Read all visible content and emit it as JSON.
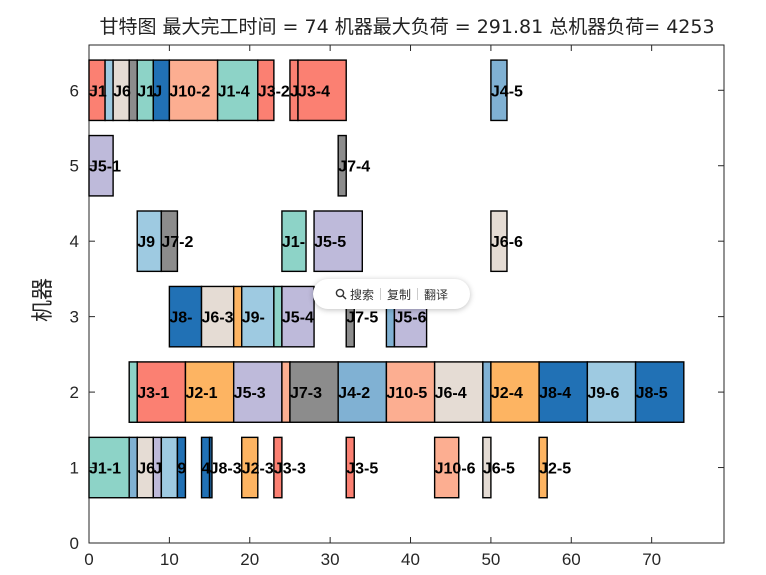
{
  "chart_data": {
    "type": "gantt",
    "title": "甘特图 最大完工时间 = 74 机器最大负荷 = 291.81 总机器负荷= 4253",
    "xlabel": "",
    "ylabel": "机器",
    "xlim": [
      0,
      79
    ],
    "ylim": [
      0,
      6.6
    ],
    "xticks": [
      "0",
      "10",
      "20",
      "30",
      "40",
      "50",
      "60",
      "70"
    ],
    "yticks": [
      "0",
      "1",
      "2",
      "3",
      "4",
      "5",
      "6"
    ],
    "grid": false,
    "colors": {
      "J1": "#8DD3C7",
      "J2": "#FDB462",
      "J3": "#FB8072",
      "J4": "#80B1D3",
      "J5": "#BEBADA",
      "J6": "#E5DCD4",
      "J7": "#8C8C8C",
      "J8": "#2171B5",
      "J9": "#9ECAE1",
      "J10": "#FCAE91"
    },
    "tasks": [
      {
        "machine": 6,
        "label": "J1",
        "start": 0,
        "end": 2,
        "job": "J3"
      },
      {
        "machine": 6,
        "label": "",
        "start": 2,
        "end": 3,
        "job": "J9"
      },
      {
        "machine": 6,
        "label": "J6",
        "start": 3,
        "end": 5,
        "job": "J6"
      },
      {
        "machine": 6,
        "label": "",
        "start": 5,
        "end": 6,
        "job": "J7"
      },
      {
        "machine": 6,
        "label": "J1",
        "start": 6,
        "end": 8,
        "job": "J1"
      },
      {
        "machine": 6,
        "label": "J",
        "start": 8,
        "end": 10,
        "job": "J8"
      },
      {
        "machine": 6,
        "label": "J10-2",
        "start": 10,
        "end": 16,
        "job": "J10"
      },
      {
        "machine": 6,
        "label": "J1-4",
        "start": 16,
        "end": 21,
        "job": "J1"
      },
      {
        "machine": 6,
        "label": "J3-2",
        "start": 21,
        "end": 23,
        "job": "J3"
      },
      {
        "machine": 6,
        "label": "J",
        "start": 25,
        "end": 26,
        "job": "J3"
      },
      {
        "machine": 6,
        "label": "J3-4",
        "start": 26,
        "end": 32,
        "job": "J3"
      },
      {
        "machine": 6,
        "label": "J4-5",
        "start": 50,
        "end": 52,
        "job": "J4"
      },
      {
        "machine": 5,
        "label": "J5-1",
        "start": 0,
        "end": 3,
        "job": "J5"
      },
      {
        "machine": 5,
        "label": "J7-4",
        "start": 31,
        "end": 32,
        "job": "J7"
      },
      {
        "machine": 4,
        "label": "J9",
        "start": 6,
        "end": 9,
        "job": "J9"
      },
      {
        "machine": 4,
        "label": "J7-2",
        "start": 9,
        "end": 11,
        "job": "J7"
      },
      {
        "machine": 4,
        "label": "J1-",
        "start": 24,
        "end": 27,
        "job": "J1"
      },
      {
        "machine": 4,
        "label": "J5-5",
        "start": 28,
        "end": 34,
        "job": "J5"
      },
      {
        "machine": 4,
        "label": "J6-6",
        "start": 50,
        "end": 52,
        "job": "J6"
      },
      {
        "machine": 3,
        "label": "J8-",
        "start": 10,
        "end": 14,
        "job": "J8"
      },
      {
        "machine": 3,
        "label": "J6-3",
        "start": 14,
        "end": 18,
        "job": "J6"
      },
      {
        "machine": 3,
        "label": "",
        "start": 18,
        "end": 19,
        "job": "J2"
      },
      {
        "machine": 3,
        "label": "J9-",
        "start": 19,
        "end": 23,
        "job": "J9"
      },
      {
        "machine": 3,
        "label": "",
        "start": 23,
        "end": 24,
        "job": "J1"
      },
      {
        "machine": 3,
        "label": "J5-4",
        "start": 24,
        "end": 28,
        "job": "J5"
      },
      {
        "machine": 3,
        "label": "J7-5",
        "start": 32,
        "end": 33,
        "job": "J7"
      },
      {
        "machine": 3,
        "label": "",
        "start": 37,
        "end": 38,
        "job": "J4"
      },
      {
        "machine": 3,
        "label": "J5-6",
        "start": 38,
        "end": 42,
        "job": "J5"
      },
      {
        "machine": 2,
        "label": "",
        "start": 5,
        "end": 6,
        "job": "J1"
      },
      {
        "machine": 2,
        "label": "J3-1",
        "start": 6,
        "end": 12,
        "job": "J3"
      },
      {
        "machine": 2,
        "label": "J2-1",
        "start": 12,
        "end": 18,
        "job": "J2"
      },
      {
        "machine": 2,
        "label": "J5-3",
        "start": 18,
        "end": 24,
        "job": "J5"
      },
      {
        "machine": 2,
        "label": "",
        "start": 24,
        "end": 25,
        "job": "J10"
      },
      {
        "machine": 2,
        "label": "J7-3",
        "start": 25,
        "end": 31,
        "job": "J7"
      },
      {
        "machine": 2,
        "label": "J4-2",
        "start": 31,
        "end": 37,
        "job": "J4"
      },
      {
        "machine": 2,
        "label": "J10-5",
        "start": 37,
        "end": 43,
        "job": "J10"
      },
      {
        "machine": 2,
        "label": "J6-4",
        "start": 43,
        "end": 49,
        "job": "J6"
      },
      {
        "machine": 2,
        "label": "",
        "start": 49,
        "end": 50,
        "job": "J4"
      },
      {
        "machine": 2,
        "label": "J2-4",
        "start": 50,
        "end": 56,
        "job": "J2"
      },
      {
        "machine": 2,
        "label": "J8-4",
        "start": 56,
        "end": 62,
        "job": "J8"
      },
      {
        "machine": 2,
        "label": "J9-6",
        "start": 62,
        "end": 68,
        "job": "J9"
      },
      {
        "machine": 2,
        "label": "J8-5",
        "start": 68,
        "end": 74,
        "job": "J8"
      },
      {
        "machine": 1,
        "label": "J1-1",
        "start": 0,
        "end": 5,
        "job": "J1"
      },
      {
        "machine": 1,
        "label": "",
        "start": 5,
        "end": 6,
        "job": "J4"
      },
      {
        "machine": 1,
        "label": "J6",
        "start": 6,
        "end": 8,
        "job": "J6"
      },
      {
        "machine": 1,
        "label": "J",
        "start": 8,
        "end": 9,
        "job": "J5"
      },
      {
        "machine": 1,
        "label": "",
        "start": 9,
        "end": 11,
        "job": "J9"
      },
      {
        "machine": 1,
        "label": "9",
        "start": 11,
        "end": 12,
        "job": "J8"
      },
      {
        "machine": 1,
        "label": "4",
        "start": 14,
        "end": 15,
        "job": "J8"
      },
      {
        "machine": 1,
        "label": "J8-3",
        "start": 15,
        "end": 15.3,
        "job": "J8"
      },
      {
        "machine": 1,
        "label": "J2-3",
        "start": 19,
        "end": 21,
        "job": "J2"
      },
      {
        "machine": 1,
        "label": "J3-3",
        "start": 23,
        "end": 24,
        "job": "J3"
      },
      {
        "machine": 1,
        "label": "J3-5",
        "start": 32,
        "end": 33,
        "job": "J3"
      },
      {
        "machine": 1,
        "label": "J10-6",
        "start": 43,
        "end": 46,
        "job": "J10"
      },
      {
        "machine": 1,
        "label": "J6-5",
        "start": 49,
        "end": 50,
        "job": "J6"
      },
      {
        "machine": 1,
        "label": "J2-5",
        "start": 56,
        "end": 57,
        "job": "J2"
      }
    ]
  },
  "popup": {
    "search": "搜索",
    "copy": "复制",
    "translate": "翻译"
  }
}
